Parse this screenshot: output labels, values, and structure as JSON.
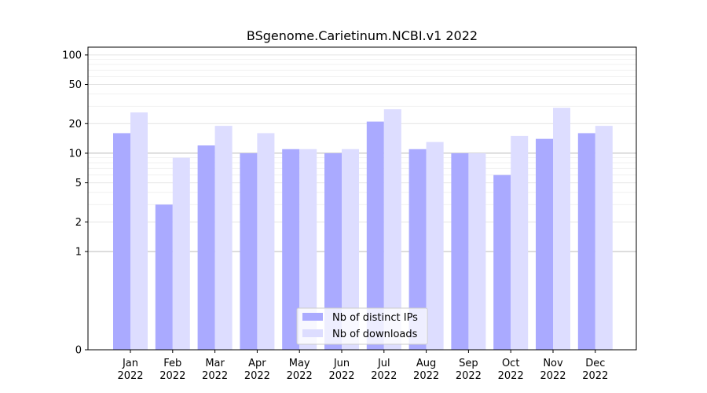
{
  "chart_data": {
    "type": "bar",
    "title": "BSgenome.Carietinum.NCBI.v1 2022",
    "xlabel": "",
    "ylabel": "",
    "y_scale": "symlog",
    "ylim": [
      0,
      120
    ],
    "y_ticks": [
      0,
      1,
      2,
      5,
      10,
      20,
      50,
      100
    ],
    "grid": "horizontal",
    "legend_position": "bottom-center",
    "categories": [
      "Jan\n2022",
      "Feb\n2022",
      "Mar\n2022",
      "Apr\n2022",
      "May\n2022",
      "Jun\n2022",
      "Jul\n2022",
      "Aug\n2022",
      "Sep\n2022",
      "Oct\n2022",
      "Nov\n2022",
      "Dec\n2022"
    ],
    "series": [
      {
        "name": "Nb of distinct IPs",
        "color": "#aaaaff",
        "values": [
          16,
          3,
          12,
          10,
          11,
          10,
          21,
          11,
          10,
          6,
          14,
          16
        ]
      },
      {
        "name": "Nb of downloads",
        "color": "#ddddff",
        "values": [
          26,
          9,
          19,
          16,
          11,
          11,
          28,
          13,
          10,
          15,
          29,
          19
        ]
      }
    ]
  }
}
